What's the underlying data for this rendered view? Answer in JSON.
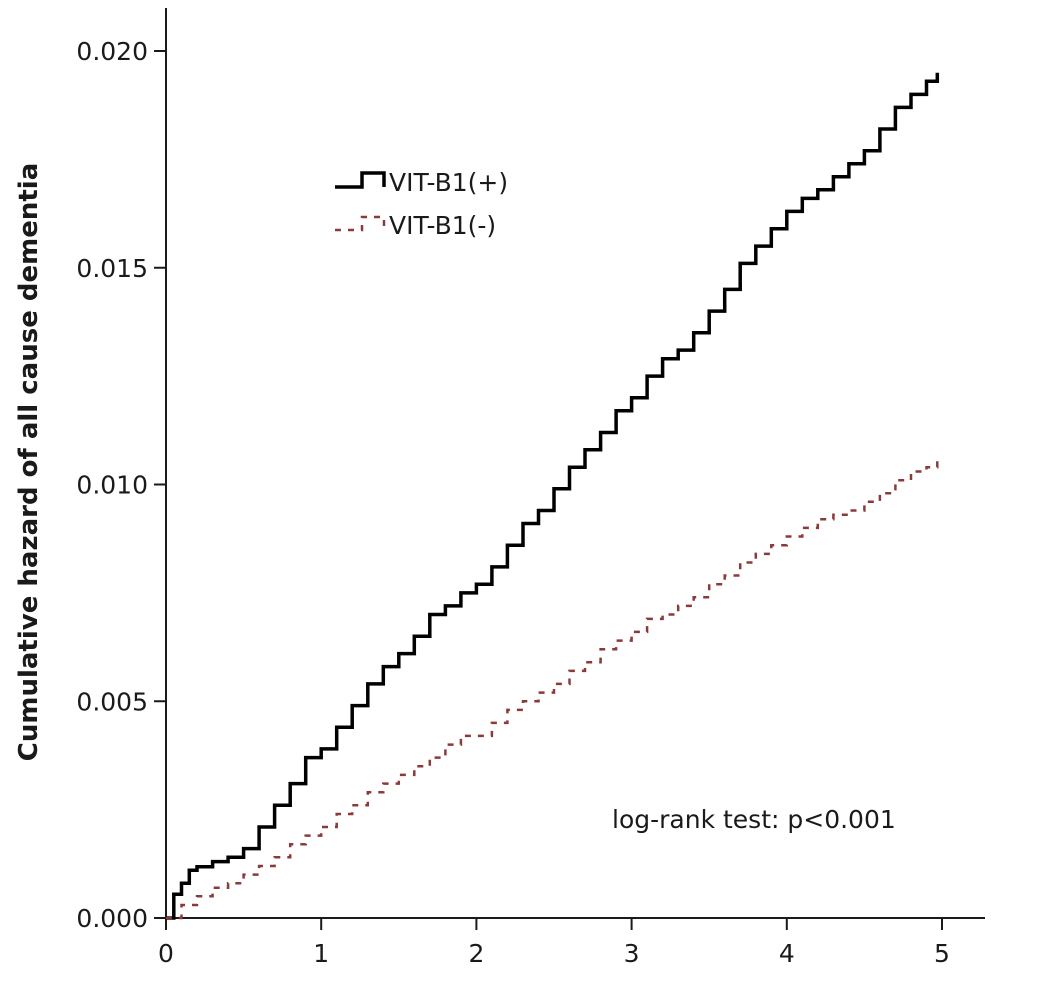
{
  "chart_data": {
    "type": "line",
    "title": "",
    "xlabel": "",
    "ylabel": "Cumulative hazard of all cause dementia",
    "xlim": [
      0,
      5
    ],
    "ylim": [
      0,
      0.02
    ],
    "x_ticks": [
      0,
      1,
      2,
      3,
      4,
      5
    ],
    "x_tick_labels": [
      "0",
      "1",
      "2",
      "3",
      "4",
      "5"
    ],
    "y_ticks": [
      0,
      0.005,
      0.01,
      0.015,
      0.02
    ],
    "y_tick_labels": [
      "0.000",
      "0.005",
      "0.010",
      "0.015",
      "0.020"
    ],
    "grid": false,
    "legend_position": "top-left",
    "annotation": "log-rank test: p<0.001",
    "series": [
      {
        "name": "VIT-B1(+)",
        "color": "#000000",
        "line_style": "solid-step",
        "x": [
          0,
          0.05,
          0.1,
          0.15,
          0.2,
          0.3,
          0.4,
          0.5,
          0.6,
          0.7,
          0.8,
          0.9,
          1.0,
          1.1,
          1.2,
          1.3,
          1.4,
          1.5,
          1.6,
          1.7,
          1.8,
          1.9,
          2.0,
          2.1,
          2.2,
          2.3,
          2.4,
          2.5,
          2.6,
          2.7,
          2.8,
          2.9,
          3.0,
          3.1,
          3.2,
          3.3,
          3.4,
          3.5,
          3.6,
          3.7,
          3.8,
          3.9,
          4.0,
          4.1,
          4.2,
          4.3,
          4.4,
          4.5,
          4.6,
          4.7,
          4.8,
          4.9,
          4.97
        ],
        "y": [
          0.0,
          0.00055,
          0.0008,
          0.0011,
          0.00118,
          0.0013,
          0.0014,
          0.0016,
          0.0021,
          0.0026,
          0.0031,
          0.0037,
          0.0039,
          0.0044,
          0.0049,
          0.0054,
          0.0058,
          0.0061,
          0.0065,
          0.007,
          0.0072,
          0.0075,
          0.0077,
          0.0081,
          0.0086,
          0.0091,
          0.0094,
          0.0099,
          0.0104,
          0.0108,
          0.0112,
          0.0117,
          0.012,
          0.0125,
          0.0129,
          0.0131,
          0.0135,
          0.014,
          0.0145,
          0.0151,
          0.0155,
          0.0159,
          0.0163,
          0.0166,
          0.0168,
          0.0171,
          0.0174,
          0.0177,
          0.0182,
          0.0187,
          0.019,
          0.0193,
          0.0195
        ]
      },
      {
        "name": "VIT-B1(-)",
        "color": "#8b3a3a",
        "line_style": "dashed",
        "x": [
          0,
          0.1,
          0.2,
          0.3,
          0.4,
          0.5,
          0.6,
          0.7,
          0.8,
          0.9,
          1.0,
          1.1,
          1.2,
          1.3,
          1.4,
          1.5,
          1.6,
          1.7,
          1.8,
          1.9,
          2.0,
          2.1,
          2.2,
          2.3,
          2.4,
          2.5,
          2.6,
          2.7,
          2.8,
          2.9,
          3.0,
          3.1,
          3.2,
          3.3,
          3.4,
          3.5,
          3.6,
          3.7,
          3.8,
          3.9,
          4.0,
          4.1,
          4.2,
          4.3,
          4.4,
          4.5,
          4.6,
          4.7,
          4.8,
          4.9,
          4.97
        ],
        "y": [
          0.0,
          0.0003,
          0.0005,
          0.0007,
          0.0008,
          0.001,
          0.0012,
          0.0014,
          0.0017,
          0.0019,
          0.0021,
          0.0024,
          0.0026,
          0.0029,
          0.0031,
          0.0033,
          0.0035,
          0.0037,
          0.004,
          0.0042,
          0.0042,
          0.0045,
          0.0048,
          0.005,
          0.0052,
          0.0054,
          0.0057,
          0.0059,
          0.0062,
          0.0064,
          0.0066,
          0.0069,
          0.007,
          0.0072,
          0.0074,
          0.0077,
          0.0079,
          0.0082,
          0.0084,
          0.0086,
          0.0088,
          0.009,
          0.0092,
          0.0093,
          0.0094,
          0.0096,
          0.0098,
          0.0101,
          0.0103,
          0.0104,
          0.0106
        ]
      }
    ]
  }
}
